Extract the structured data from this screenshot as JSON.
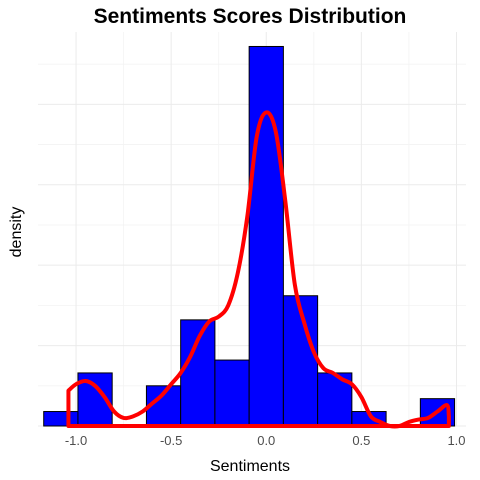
{
  "chart_data": {
    "type": "bar",
    "title": "Sentiments Scores Distribution",
    "xlabel": "Sentiments",
    "ylabel": "density",
    "xlim": [
      -1.2,
      1.05
    ],
    "ylim": [
      0,
      2.45
    ],
    "x_ticks": [
      -1.0,
      -0.5,
      0.0,
      0.5,
      1.0
    ],
    "x_tick_labels": [
      "-1.0",
      "-0.5",
      "0.0",
      "0.5",
      "1.0"
    ],
    "y_tick_labels_shown": false,
    "grid": true,
    "legend": "none",
    "histogram": {
      "bin_width": 0.18,
      "bins": [
        {
          "x0": -1.17,
          "x1": -0.99,
          "density": 0.09
        },
        {
          "x0": -0.99,
          "x1": -0.81,
          "density": 0.33
        },
        {
          "x0": -0.81,
          "x1": -0.63,
          "density": 0.0
        },
        {
          "x0": -0.63,
          "x1": -0.45,
          "density": 0.25
        },
        {
          "x0": -0.45,
          "x1": -0.27,
          "density": 0.66
        },
        {
          "x0": -0.27,
          "x1": -0.09,
          "density": 0.41
        },
        {
          "x0": -0.09,
          "x1": 0.09,
          "density": 2.36
        },
        {
          "x0": 0.09,
          "x1": 0.27,
          "density": 0.81
        },
        {
          "x0": 0.27,
          "x1": 0.45,
          "density": 0.33
        },
        {
          "x0": 0.45,
          "x1": 0.63,
          "density": 0.09
        },
        {
          "x0": 0.63,
          "x1": 0.81,
          "density": 0.0
        },
        {
          "x0": 0.81,
          "x1": 0.99,
          "density": 0.17
        }
      ]
    },
    "density_curve": {
      "x": [
        -1.04,
        -1.0,
        -0.95,
        -0.9,
        -0.85,
        -0.8,
        -0.75,
        -0.7,
        -0.65,
        -0.6,
        -0.55,
        -0.5,
        -0.45,
        -0.4,
        -0.35,
        -0.3,
        -0.25,
        -0.2,
        -0.15,
        -0.1,
        -0.05,
        0.0,
        0.05,
        0.1,
        0.15,
        0.2,
        0.25,
        0.3,
        0.35,
        0.4,
        0.45,
        0.5,
        0.55,
        0.6,
        0.65,
        0.7,
        0.75,
        0.8,
        0.85,
        0.9,
        0.95,
        0.96
      ],
      "y": [
        0.22,
        0.26,
        0.28,
        0.25,
        0.18,
        0.09,
        0.05,
        0.06,
        0.09,
        0.14,
        0.19,
        0.26,
        0.33,
        0.43,
        0.56,
        0.65,
        0.68,
        0.75,
        0.95,
        1.3,
        1.8,
        1.95,
        1.83,
        1.4,
        0.88,
        0.64,
        0.46,
        0.36,
        0.33,
        0.29,
        0.26,
        0.18,
        0.06,
        0.025,
        0.0,
        0.0,
        0.025,
        0.04,
        0.05,
        0.09,
        0.13,
        0.06
      ]
    },
    "colors": {
      "bar_fill": "#0000ff",
      "bar_outline": "#000000",
      "density_line": "#ff0000"
    }
  }
}
